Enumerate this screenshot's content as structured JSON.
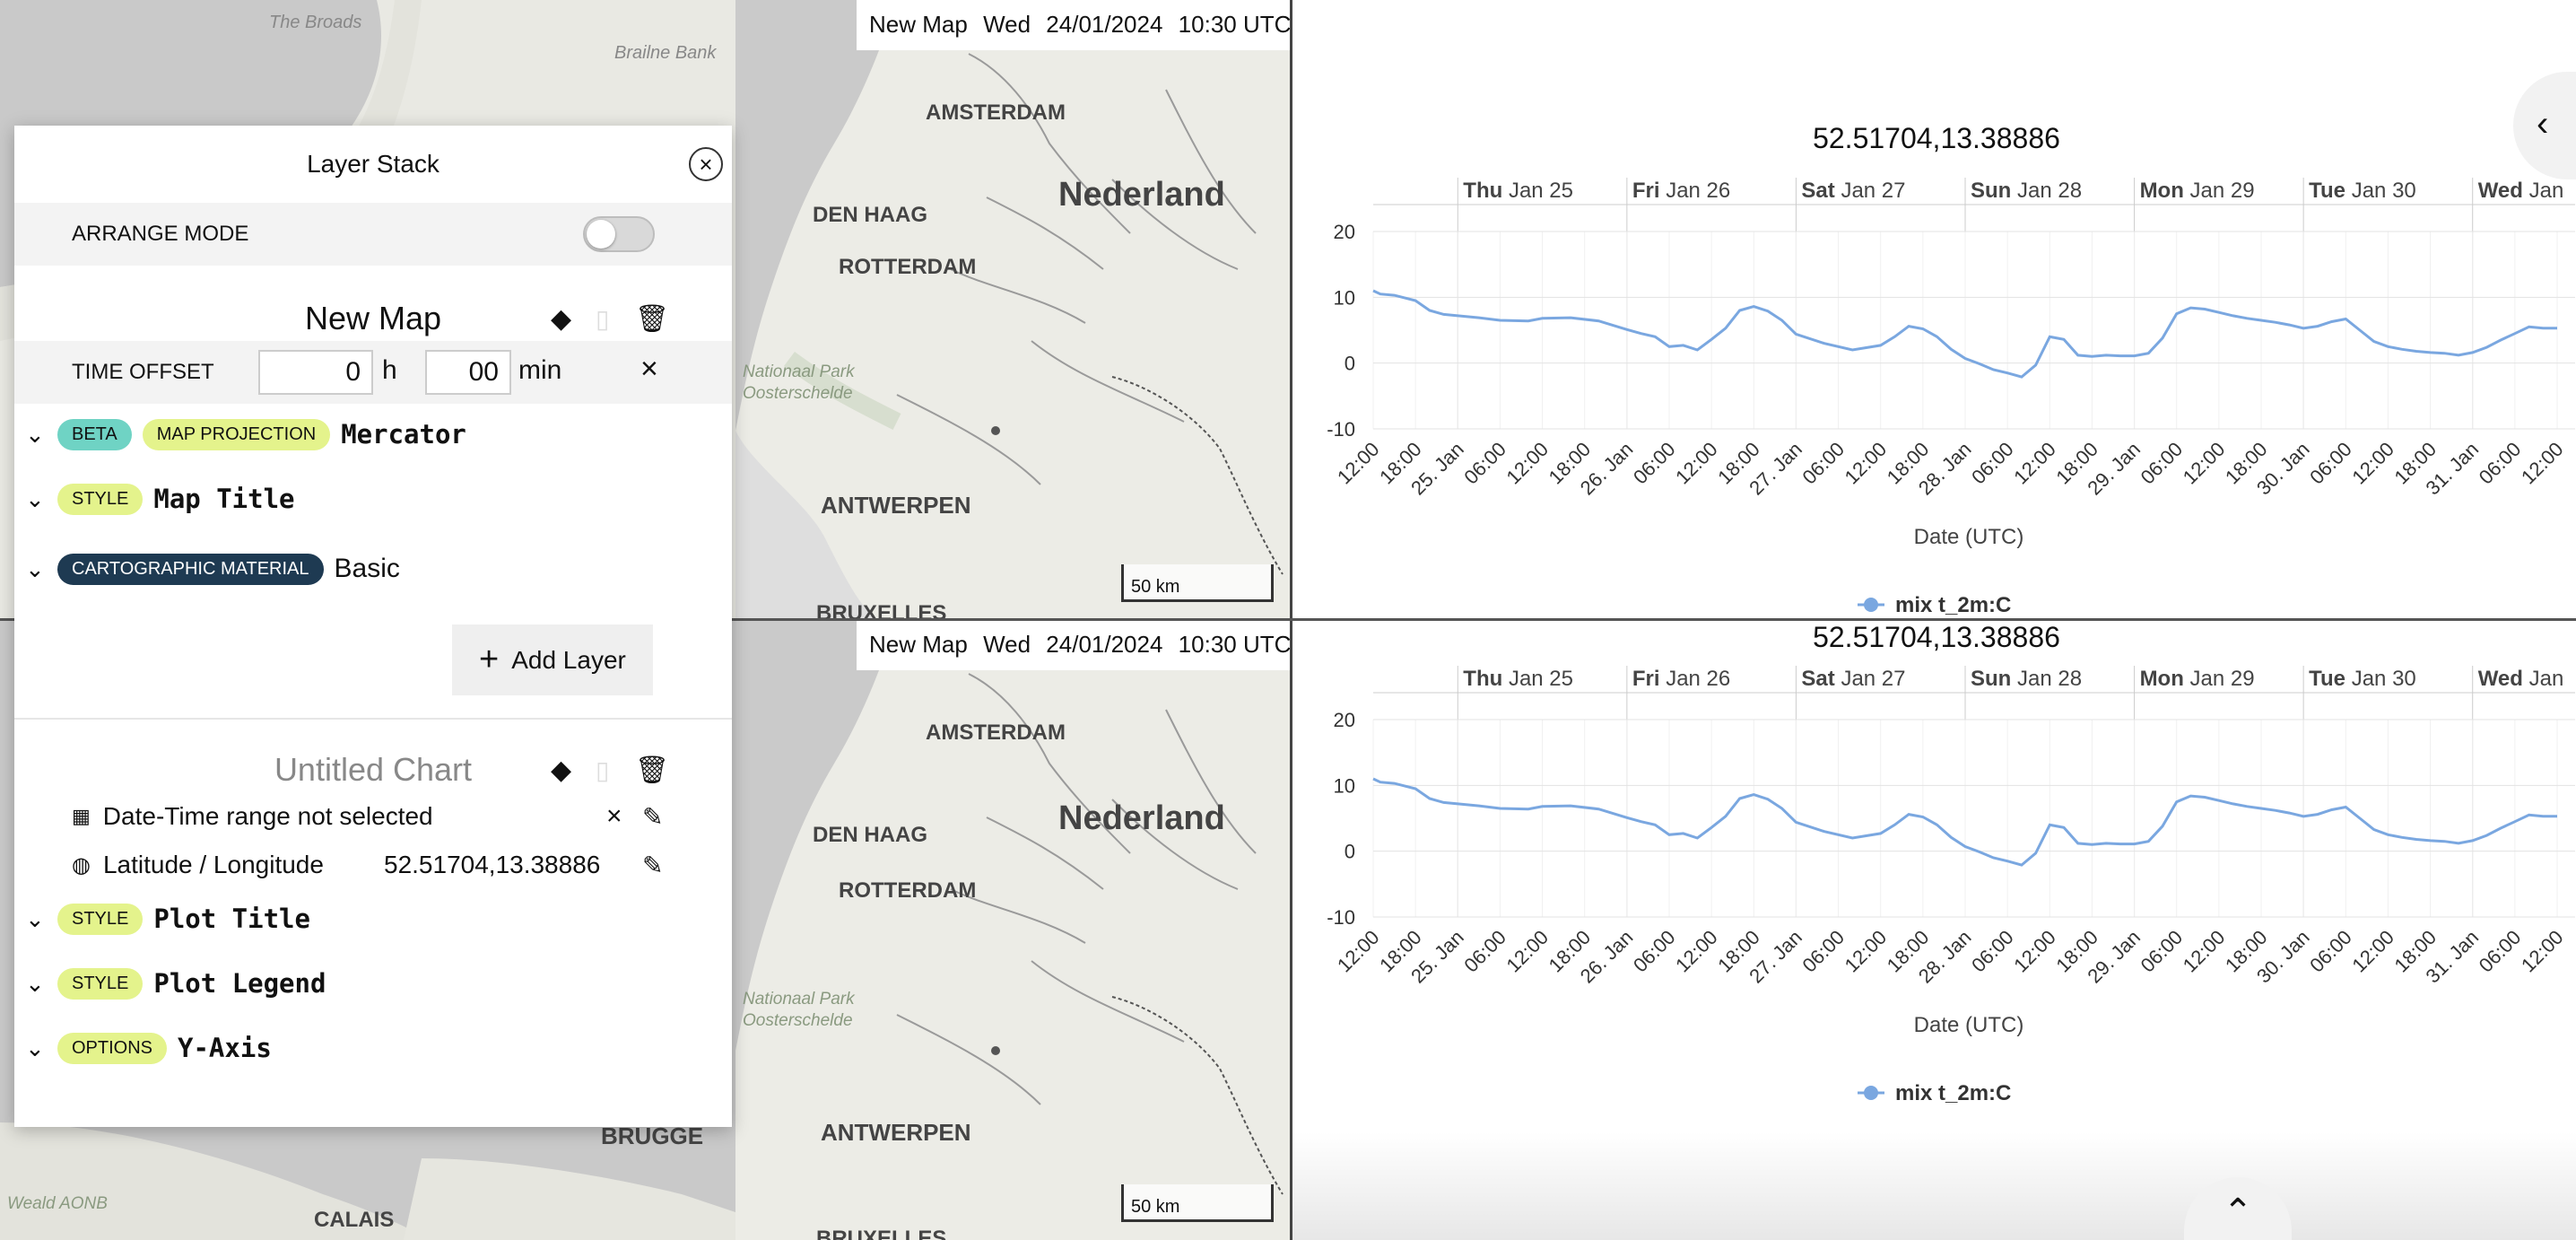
{
  "maps": [
    {
      "timestamp": {
        "name": "New Map",
        "day": "Wed",
        "date": "24/01/2024",
        "time": "10:30 UTC"
      },
      "scale": "50 km",
      "places": {
        "broads": "The Broads",
        "bank": "Brailne Bank",
        "amsterdam": "AMSTERDAM",
        "denhaag": "DEN HAAG",
        "rotterdam": "ROTTERDAM",
        "nederland": "Nederland",
        "natpark1": "Nationaal Park",
        "natpark2": "Oosterschelde",
        "antwerpen": "ANTWERPEN",
        "brussel": "BRUXELLES"
      }
    },
    {
      "timestamp": {
        "name": "New Map",
        "day": "Wed",
        "date": "24/01/2024",
        "time": "10:30 UTC"
      },
      "scale": "50 km",
      "places": {
        "amsterdam": "AMSTERDAM",
        "denhaag": "DEN HAAG",
        "rotterdam": "ROTTERDAM",
        "nederland": "Nederland",
        "natpark1": "Nationaal Park",
        "natpark2": "Oosterschelde",
        "antwerpen": "ANTWERPEN",
        "brugge": "BRUGGE",
        "calais": "CALAIS",
        "weald": "Weald AONB",
        "brussel": "BRUXELLES"
      }
    }
  ],
  "panel": {
    "title": "Layer Stack",
    "close_icon": "close-icon",
    "arrange_mode": "ARRANGE MODE",
    "map_title": "New Map",
    "time_offset": "TIME OFFSET",
    "offset_h": "0",
    "h_unit": "h",
    "offset_min": "00",
    "min_unit": "min",
    "layers": [
      {
        "badges": [
          "BETA",
          "MAP PROJECTION"
        ],
        "value": "Mercator"
      },
      {
        "badges": [
          "STYLE"
        ],
        "value": "Map Title"
      },
      {
        "badges": [
          "CARTOGRAPHIC MATERIAL"
        ],
        "value": "Basic"
      }
    ],
    "add_layer": "Add Layer",
    "chart_title": "Untitled Chart",
    "date_range": "Date-Time range not selected",
    "latlon_label": "Latitude / Longitude",
    "latlon_value": "52.51704,13.38886",
    "chart_layers": [
      {
        "badge": "STYLE",
        "value": "Plot Title"
      },
      {
        "badge": "STYLE",
        "value": "Plot Legend"
      },
      {
        "badge": "OPTIONS",
        "value": "Y-Axis"
      }
    ]
  },
  "colors": {
    "line": "#7aa7e0",
    "beta": "#6fd3c4",
    "lime": "#e4f38c",
    "carto": "#1e3a52",
    "water": "#c7c7c7",
    "land": "#e9e9e3"
  },
  "chart_data": [
    {
      "type": "line",
      "title": "52.51704,13.38886",
      "xlabel": "Date (UTC)",
      "ylabel": "",
      "ylim": [
        -10,
        20
      ],
      "yticks": [
        20,
        10,
        0,
        -10
      ],
      "day_labels": [
        [
          "Thu",
          "Jan 25"
        ],
        [
          "Fri",
          "Jan 26"
        ],
        [
          "Sat",
          "Jan 27"
        ],
        [
          "Sun",
          "Jan 28"
        ],
        [
          "Mon",
          "Jan 29"
        ],
        [
          "Tue",
          "Jan 30"
        ],
        [
          "Wed",
          "Jan"
        ]
      ],
      "x_tick_labels": [
        "12:00",
        "18:00",
        "25. Jan",
        "06:00",
        "12:00",
        "18:00",
        "26. Jan",
        "06:00",
        "12:00",
        "18:00",
        "27. Jan",
        "06:00",
        "12:00",
        "18:00",
        "28. Jan",
        "06:00",
        "12:00",
        "18:00",
        "29. Jan",
        "06:00",
        "12:00",
        "18:00",
        "30. Jan",
        "06:00",
        "12:00",
        "18:00",
        "31. Jan",
        "06:00",
        "12:00"
      ],
      "x_hours_since_24jan_12h": [
        0,
        6,
        12,
        18,
        24,
        30,
        36,
        42,
        48,
        54,
        60,
        66,
        72,
        78,
        84,
        90,
        96,
        102,
        108,
        114,
        120,
        126,
        132,
        138,
        144,
        150,
        156,
        162,
        168
      ],
      "series": [
        {
          "name": "mix t_2m:C",
          "x": [
            0,
            1,
            3,
            6,
            8,
            10,
            12,
            15,
            18,
            22,
            24,
            28,
            32,
            36,
            38,
            40,
            42,
            44,
            46,
            48,
            50,
            52,
            54,
            56,
            58,
            60,
            64,
            68,
            72,
            74,
            76,
            78,
            80,
            82,
            84,
            86,
            88,
            90,
            92,
            94,
            96,
            98,
            100,
            102,
            104,
            106,
            108,
            110,
            112,
            114,
            116,
            118,
            120,
            122,
            124,
            126,
            128,
            130,
            132,
            134,
            136,
            138,
            140,
            142,
            144,
            146,
            148,
            150,
            152,
            154,
            156,
            158,
            160,
            162,
            164,
            166,
            168
          ],
          "y": [
            11,
            10.5,
            10.3,
            9.5,
            8,
            7.4,
            7.2,
            6.9,
            6.5,
            6.4,
            6.8,
            6.9,
            6.4,
            5.1,
            4.5,
            4,
            2.5,
            2.7,
            2,
            3.6,
            5.3,
            8,
            8.6,
            7.9,
            6.5,
            4.4,
            3,
            2,
            2.7,
            4,
            5.6,
            5.2,
            4,
            2.1,
            0.7,
            -0.1,
            -1,
            -1.5,
            -2.1,
            -0.3,
            4,
            3.6,
            1.2,
            1,
            1.2,
            1.1,
            1.1,
            1.5,
            3.8,
            7.5,
            8.4,
            8.2,
            7.7,
            7.2,
            6.8,
            6.5,
            6.2,
            5.8,
            5.3,
            5.6,
            6.3,
            6.7,
            5,
            3.3,
            2.5,
            2.1,
            1.8,
            1.6,
            1.5,
            1.2,
            1.6,
            2.4,
            3.5,
            4.5,
            5.5,
            5.3,
            5.3
          ]
        }
      ]
    },
    {
      "type": "line",
      "title": "52.51704,13.38886",
      "xlabel": "Date (UTC)",
      "ylabel": "",
      "ylim": [
        -10,
        20
      ],
      "yticks": [
        20,
        10,
        0,
        -10
      ],
      "day_labels": [
        [
          "Thu",
          "Jan 25"
        ],
        [
          "Fri",
          "Jan 26"
        ],
        [
          "Sat",
          "Jan 27"
        ],
        [
          "Sun",
          "Jan 28"
        ],
        [
          "Mon",
          "Jan 29"
        ],
        [
          "Tue",
          "Jan 30"
        ],
        [
          "Wed",
          "Jan"
        ]
      ],
      "x_tick_labels": [
        "12:00",
        "18:00",
        "25. Jan",
        "06:00",
        "12:00",
        "18:00",
        "26. Jan",
        "06:00",
        "12:00",
        "18:00",
        "27. Jan",
        "06:00",
        "12:00",
        "18:00",
        "28. Jan",
        "06:00",
        "12:00",
        "18:00",
        "29. Jan",
        "06:00",
        "12:00",
        "18:00",
        "30. Jan",
        "06:00",
        "12:00",
        "18:00",
        "31. Jan",
        "06:00",
        "12:00"
      ],
      "x_hours_since_24jan_12h": [
        0,
        6,
        12,
        18,
        24,
        30,
        36,
        42,
        48,
        54,
        60,
        66,
        72,
        78,
        84,
        90,
        96,
        102,
        108,
        114,
        120,
        126,
        132,
        138,
        144,
        150,
        156,
        162,
        168
      ],
      "series": [
        {
          "name": "mix t_2m:C",
          "x": [
            0,
            1,
            3,
            6,
            8,
            10,
            12,
            15,
            18,
            22,
            24,
            28,
            32,
            36,
            38,
            40,
            42,
            44,
            46,
            48,
            50,
            52,
            54,
            56,
            58,
            60,
            64,
            68,
            72,
            74,
            76,
            78,
            80,
            82,
            84,
            86,
            88,
            90,
            92,
            94,
            96,
            98,
            100,
            102,
            104,
            106,
            108,
            110,
            112,
            114,
            116,
            118,
            120,
            122,
            124,
            126,
            128,
            130,
            132,
            134,
            136,
            138,
            140,
            142,
            144,
            146,
            148,
            150,
            152,
            154,
            156,
            158,
            160,
            162,
            164,
            166,
            168
          ],
          "y": [
            11,
            10.5,
            10.3,
            9.5,
            8,
            7.4,
            7.2,
            6.9,
            6.5,
            6.4,
            6.8,
            6.9,
            6.4,
            5.1,
            4.5,
            4,
            2.5,
            2.7,
            2,
            3.6,
            5.3,
            8,
            8.6,
            7.9,
            6.5,
            4.4,
            3,
            2,
            2.7,
            4,
            5.6,
            5.2,
            4,
            2.1,
            0.7,
            -0.1,
            -1,
            -1.5,
            -2.1,
            -0.3,
            4,
            3.6,
            1.2,
            1,
            1.2,
            1.1,
            1.1,
            1.5,
            3.8,
            7.5,
            8.4,
            8.2,
            7.7,
            7.2,
            6.8,
            6.5,
            6.2,
            5.8,
            5.3,
            5.6,
            6.3,
            6.7,
            5,
            3.3,
            2.5,
            2.1,
            1.8,
            1.6,
            1.5,
            1.2,
            1.6,
            2.4,
            3.5,
            4.5,
            5.5,
            5.3,
            5.3
          ]
        }
      ]
    }
  ]
}
